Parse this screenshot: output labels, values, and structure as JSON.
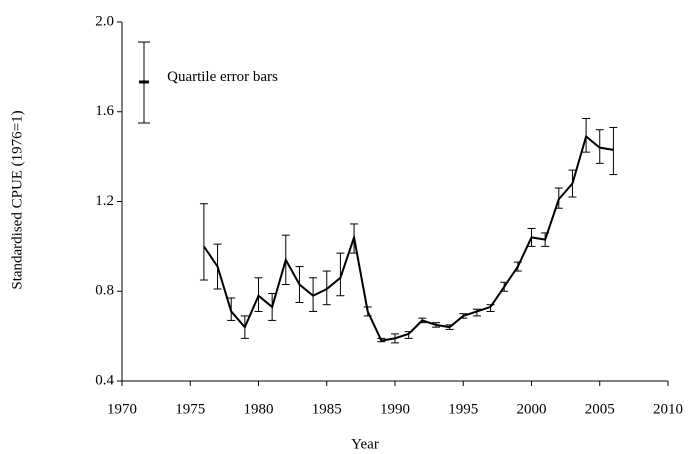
{
  "chart_data": {
    "type": "line",
    "xlabel": "Year",
    "ylabel": "Standardised CPUE (1976=1)",
    "legend_label": "Quartile error bars",
    "x": [
      1976,
      1977,
      1978,
      1979,
      1980,
      1981,
      1982,
      1983,
      1984,
      1985,
      1986,
      1987,
      1988,
      1989,
      1990,
      1991,
      1992,
      1993,
      1994,
      1995,
      1996,
      1997,
      1998,
      1999,
      2000,
      2001,
      2002,
      2003,
      2004,
      2005,
      2006
    ],
    "series": [
      {
        "color": "#000000",
        "values": [
          1.0,
          0.91,
          0.71,
          0.64,
          0.78,
          0.73,
          0.94,
          0.83,
          0.78,
          0.81,
          0.86,
          1.04,
          0.71,
          0.58,
          0.59,
          0.61,
          0.67,
          0.65,
          0.64,
          0.69,
          0.71,
          0.73,
          0.82,
          0.91,
          1.04,
          1.03,
          1.21,
          1.28,
          1.49,
          1.44,
          1.43
        ],
        "lower": [
          0.85,
          0.81,
          0.67,
          0.59,
          0.71,
          0.67,
          0.83,
          0.75,
          0.71,
          0.74,
          0.78,
          0.97,
          0.69,
          0.575,
          0.57,
          0.59,
          0.66,
          0.64,
          0.63,
          0.68,
          0.69,
          0.71,
          0.8,
          0.89,
          1.0,
          1.0,
          1.17,
          1.22,
          1.42,
          1.37,
          1.32
        ],
        "upper": [
          1.19,
          1.01,
          0.77,
          0.69,
          0.86,
          0.79,
          1.05,
          0.91,
          0.86,
          0.89,
          0.97,
          1.1,
          0.73,
          0.59,
          0.61,
          0.62,
          0.68,
          0.66,
          0.65,
          0.7,
          0.72,
          0.74,
          0.84,
          0.93,
          1.08,
          1.06,
          1.26,
          1.34,
          1.57,
          1.52,
          1.53
        ]
      }
    ],
    "xlim": [
      1970,
      2010
    ],
    "xticks": [
      1970,
      1975,
      1980,
      1985,
      1990,
      1995,
      2000,
      2005,
      2010
    ],
    "ylim": [
      0.4,
      2.0
    ],
    "yticks": [
      0.4,
      0.8,
      1.2,
      1.6,
      {
        "value": 2,
        "label": "2.0"
      }
    ]
  }
}
